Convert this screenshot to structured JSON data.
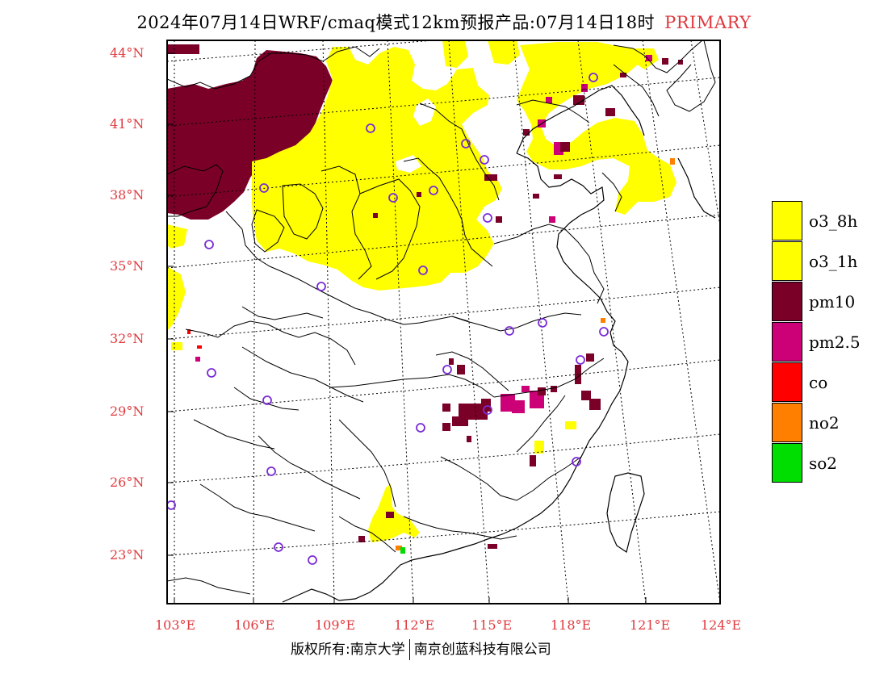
{
  "title": {
    "main": "2024年07月14日WRF/cmaq模式12km预报产品:07月14日18时",
    "tag": "PRIMARY"
  },
  "axes": {
    "lat_labels": [
      "44°N",
      "41°N",
      "38°N",
      "35°N",
      "32°N",
      "29°N",
      "26°N",
      "23°N"
    ],
    "lon_labels": [
      "103°E",
      "106°E",
      "109°E",
      "112°E",
      "115°E",
      "118°E",
      "121°E",
      "124°E"
    ]
  },
  "legend": [
    {
      "label": "o3_8h",
      "color": "#ffff00"
    },
    {
      "label": "o3_1h",
      "color": "#ffff00"
    },
    {
      "label": "pm10",
      "color": "#7a0028"
    },
    {
      "label": "pm2.5",
      "color": "#cc0077"
    },
    {
      "label": "co",
      "color": "#ff0000"
    },
    {
      "label": "no2",
      "color": "#ff7f00"
    },
    {
      "label": "so2",
      "color": "#00dd00"
    }
  ],
  "copyright": {
    "left": "版权所有:南京大学",
    "right": "南京创蓝科技有限公司"
  }
}
